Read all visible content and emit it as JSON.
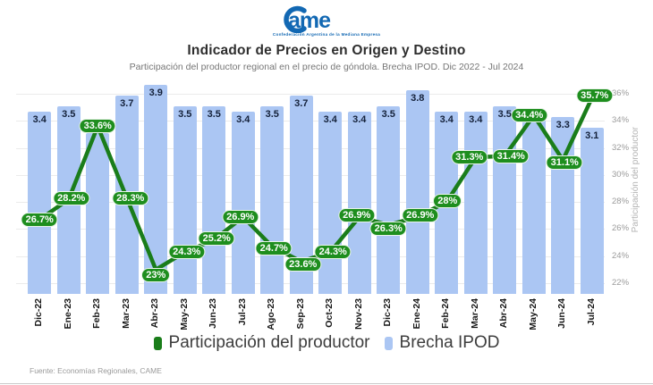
{
  "header": {
    "logo": {
      "text_main": "ame",
      "tagline": "Confederación Argentina de la Mediana Empresa",
      "color": "#1268b3"
    },
    "title": "Indicador de Precios en Origen y Destino",
    "subtitle": "Participación del productor regional en el precio de góndola. Brecha IPOD. Dic 2022 - Jul 2024"
  },
  "chart_data": {
    "type": "bar+line combo",
    "categories": [
      "Dic-22",
      "Ene-23",
      "Feb-23",
      "Mar-23",
      "Abr-23",
      "May-23",
      "Jun-23",
      "Jul-23",
      "Ago-23",
      "Sep-23",
      "Oct-23",
      "Nov-23",
      "Dic-23",
      "Ene-24",
      "Feb-24",
      "Mar-24",
      "Abr-24",
      "May-24",
      "Jun-24",
      "Jul-24"
    ],
    "series": [
      {
        "name": "Brecha IPOD",
        "type": "bar",
        "color": "#abc6f3",
        "values": [
          3.4,
          3.5,
          3.0,
          3.7,
          3.9,
          3.5,
          3.5,
          3.4,
          3.5,
          3.7,
          3.4,
          3.4,
          3.5,
          3.8,
          3.4,
          3.4,
          3.5,
          3.4,
          3.3,
          3.1
        ],
        "value_labels": [
          "3.4",
          "3.5",
          "",
          "3.7",
          "3.9",
          "3.5",
          "3.5",
          "3.4",
          "3.5",
          "3.7",
          "3.4",
          "3.4",
          "3.5",
          "3.8",
          "3.4",
          "3.4",
          "3.5",
          "",
          "3.3",
          "3.1"
        ]
      },
      {
        "name": "Participación del productor",
        "type": "line",
        "color": "#1a7d1a",
        "label_bg": "#1e8e1e",
        "values": [
          26.7,
          28.2,
          33.6,
          28.3,
          23,
          24.3,
          25.2,
          26.9,
          24.7,
          23.6,
          24.3,
          26.9,
          26.3,
          26.9,
          28,
          31.3,
          31.4,
          34.4,
          31.1,
          35.7
        ],
        "labels": [
          "26.7%",
          "28.2%",
          "33.6%",
          "28.3%",
          "23%",
          "24.3%",
          "25.2%",
          "26.9%",
          "24.7%",
          "23.6%",
          "24.3%",
          "26.9%",
          "26.3%",
          "26.9%",
          "28%",
          "31.3%",
          "31.4%",
          "34.4%",
          "31.1%",
          "35.7%"
        ],
        "label_dx": [
          0,
          3,
          0,
          4,
          0,
          2,
          3,
          -3,
          2,
          2,
          3,
          -3,
          0,
          3,
          1,
          -7,
          7,
          -5,
          2,
          3
        ],
        "label_dy": [
          0,
          -1,
          0,
          0,
          6,
          0,
          -2,
          0,
          2,
          3,
          0,
          -2,
          4,
          -2,
          -1,
          0,
          0,
          0,
          3,
          -3
        ]
      }
    ],
    "right_axis": {
      "label": "Participación del productor",
      "ticks": [
        "36%",
        "34%",
        "32%",
        "30%",
        "28%",
        "26%",
        "24%",
        "22%"
      ],
      "min": 22,
      "max": 36
    },
    "grid": true,
    "legend_position": "bottom"
  },
  "legend": {
    "line_label": "Participación del productor",
    "bar_label": "Brecha IPOD"
  },
  "footer": {
    "source": "Fuente: Economías Regionales, CAME"
  }
}
